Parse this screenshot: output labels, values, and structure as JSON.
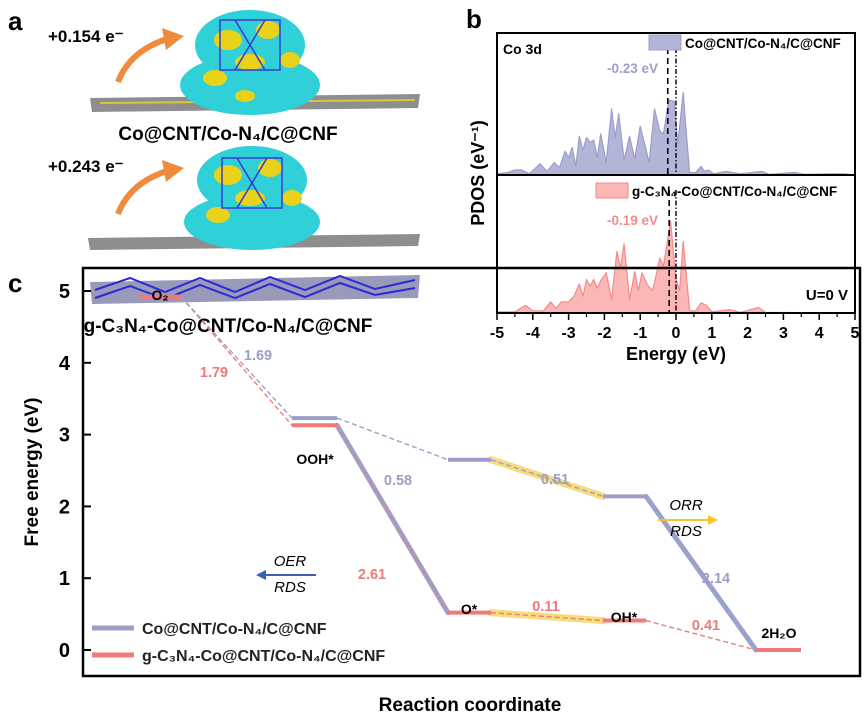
{
  "panels": {
    "a": "a",
    "b": "b",
    "c": "c"
  },
  "panel_a": {
    "charge_top": "+0.154 e⁻",
    "charge_bottom": "+0.243 e⁻",
    "label_top": "Co@CNT/Co-N₄/C@CNF",
    "label_bottom": "g-C₃N₄-Co@CNT/Co-N₄/C@CNF",
    "colors": {
      "depletion": "#2fd0d8",
      "accumulation": "#e8d21a",
      "carbon": "#6e6e6e",
      "nitrogen": "#2a2ad8",
      "arrow": "#f08a3c"
    }
  },
  "chart_data": [
    {
      "type": "area",
      "panel": "b",
      "annotation": "Co 3d",
      "xlabel": "Energy (eV)",
      "ylabel": "PDOS (eV⁻¹)",
      "xlim": [
        -5,
        5
      ],
      "xticks": [
        "-5",
        "-4",
        "-3",
        "-2",
        "-1",
        "0",
        "1",
        "2",
        "3",
        "4",
        "5"
      ],
      "legend_placement": "top-right",
      "series": [
        {
          "name": "Co@CNT/Co-N₄/C@CNF",
          "color": "#9c9ec9",
          "d_band_center": -0.23,
          "d_band_label": "-0.23 eV",
          "points": [
            [
              -5,
              0.01
            ],
            [
              -4.7,
              0.02
            ],
            [
              -4.5,
              0.04
            ],
            [
              -4.3,
              0.04
            ],
            [
              -4.1,
              0.01
            ],
            [
              -3.8,
              0.09
            ],
            [
              -3.6,
              0.03
            ],
            [
              -3.4,
              0.1
            ],
            [
              -3.25,
              0.06
            ],
            [
              -3.1,
              0.19
            ],
            [
              -3.0,
              0.14
            ],
            [
              -2.9,
              0.22
            ],
            [
              -2.8,
              0.07
            ],
            [
              -2.7,
              0.31
            ],
            [
              -2.6,
              0.2
            ],
            [
              -2.5,
              0.3
            ],
            [
              -2.4,
              0.26
            ],
            [
              -2.3,
              0.28
            ],
            [
              -2.2,
              0.14
            ],
            [
              -2.1,
              0.33
            ],
            [
              -1.95,
              0.1
            ],
            [
              -1.8,
              0.53
            ],
            [
              -1.7,
              0.3
            ],
            [
              -1.6,
              0.49
            ],
            [
              -1.45,
              0.12
            ],
            [
              -1.3,
              0.31
            ],
            [
              -1.15,
              0.13
            ],
            [
              -1.0,
              0.39
            ],
            [
              -0.85,
              0.22
            ],
            [
              -0.75,
              0.1
            ],
            [
              -0.6,
              0.53
            ],
            [
              -0.45,
              0.35
            ],
            [
              -0.35,
              0.33
            ],
            [
              -0.2,
              0.6
            ],
            [
              -0.05,
              0.59
            ],
            [
              0.05,
              0.25
            ],
            [
              0.2,
              0.66
            ],
            [
              0.3,
              0.3
            ],
            [
              0.38,
              0.02
            ],
            [
              0.55,
              0.02
            ],
            [
              0.7,
              0.07
            ],
            [
              0.8,
              0.03
            ],
            [
              0.9,
              0.04
            ],
            [
              1.05,
              0.01
            ],
            [
              1.4,
              0.03
            ],
            [
              1.8,
              0.01
            ],
            [
              2.4,
              0.03
            ],
            [
              2.6,
              0.005
            ],
            [
              3.3,
              0.02
            ],
            [
              3.6,
              0.005
            ],
            [
              4.2,
              0.01
            ],
            [
              4.7,
              0.01
            ],
            [
              5,
              0.0
            ]
          ]
        },
        {
          "name": "g-C₃N₄-Co@CNT/Co-N₄/C@CNF",
          "color": "#f58a8a",
          "d_band_center": -0.19,
          "d_band_label": "-0.19 eV",
          "points": [
            [
              -5,
              0.01
            ],
            [
              -4.5,
              0.01
            ],
            [
              -4.2,
              0.07
            ],
            [
              -4.0,
              0.02
            ],
            [
              -3.7,
              0.02
            ],
            [
              -3.5,
              0.1
            ],
            [
              -3.35,
              0.04
            ],
            [
              -3.2,
              0.1
            ],
            [
              -3.0,
              0.1
            ],
            [
              -2.85,
              0.15
            ],
            [
              -2.7,
              0.26
            ],
            [
              -2.6,
              0.15
            ],
            [
              -2.5,
              0.3
            ],
            [
              -2.4,
              0.24
            ],
            [
              -2.3,
              0.3
            ],
            [
              -2.2,
              0.22
            ],
            [
              -2.1,
              0.29
            ],
            [
              -1.95,
              0.36
            ],
            [
              -1.8,
              0.12
            ],
            [
              -1.65,
              0.55
            ],
            [
              -1.55,
              0.4
            ],
            [
              -1.45,
              0.62
            ],
            [
              -1.3,
              0.12
            ],
            [
              -1.15,
              0.37
            ],
            [
              -1.05,
              0.2
            ],
            [
              -0.95,
              0.36
            ],
            [
              -0.8,
              0.25
            ],
            [
              -0.65,
              0.2
            ],
            [
              -0.45,
              0.49
            ],
            [
              -0.35,
              0.42
            ],
            [
              -0.15,
              0.82
            ],
            [
              0.0,
              0.3
            ],
            [
              0.1,
              0.2
            ],
            [
              0.2,
              0.64
            ],
            [
              0.3,
              0.3
            ],
            [
              0.38,
              0.02
            ],
            [
              0.55,
              0.02
            ],
            [
              0.7,
              0.09
            ],
            [
              0.85,
              0.07
            ],
            [
              1.0,
              0.01
            ],
            [
              1.5,
              0.03
            ],
            [
              1.8,
              0.005
            ],
            [
              2.3,
              0.05
            ],
            [
              2.5,
              0.005
            ],
            [
              5,
              0.0
            ]
          ]
        }
      ]
    },
    {
      "type": "line",
      "panel": "c",
      "xlabel": "Reaction coordinate",
      "ylabel": "Free energy (eV)",
      "ylim": [
        -0.5,
        5.5
      ],
      "yticks": [
        "0",
        "1",
        "2",
        "3",
        "4",
        "5"
      ],
      "annotation": "U=0 V",
      "legend_placement": "bottom-left",
      "states": [
        "O₂",
        "OOH*",
        "O*",
        "OH*",
        "2H₂O"
      ],
      "series": [
        {
          "name": "Co@CNT/Co-N₄/C@CNF",
          "color": "#9c9ec9",
          "values": [
            4.92,
            3.23,
            2.65,
            2.14,
            0
          ],
          "steps": [
            "1.69",
            "0.58",
            "0.51",
            "2.14"
          ]
        },
        {
          "name": "g-C₃N₄-Co@CNT/Co-N₄/C@CNF",
          "color": "#f07a7a",
          "values": [
            4.92,
            3.13,
            0.52,
            0.41,
            0
          ],
          "steps": [
            "1.79",
            "2.61",
            "0.11",
            "0.41"
          ]
        }
      ],
      "oer_rds": {
        "label_top": "OER",
        "label_bottom": "RDS",
        "color": "#3b5fb5"
      },
      "orr_rds": {
        "label_top": "ORR",
        "label_bottom": "RDS",
        "color": "#f5c22a"
      },
      "highlight_colors": {
        "oer": "#8f9bc9",
        "orr": "#f7d870"
      }
    }
  ]
}
